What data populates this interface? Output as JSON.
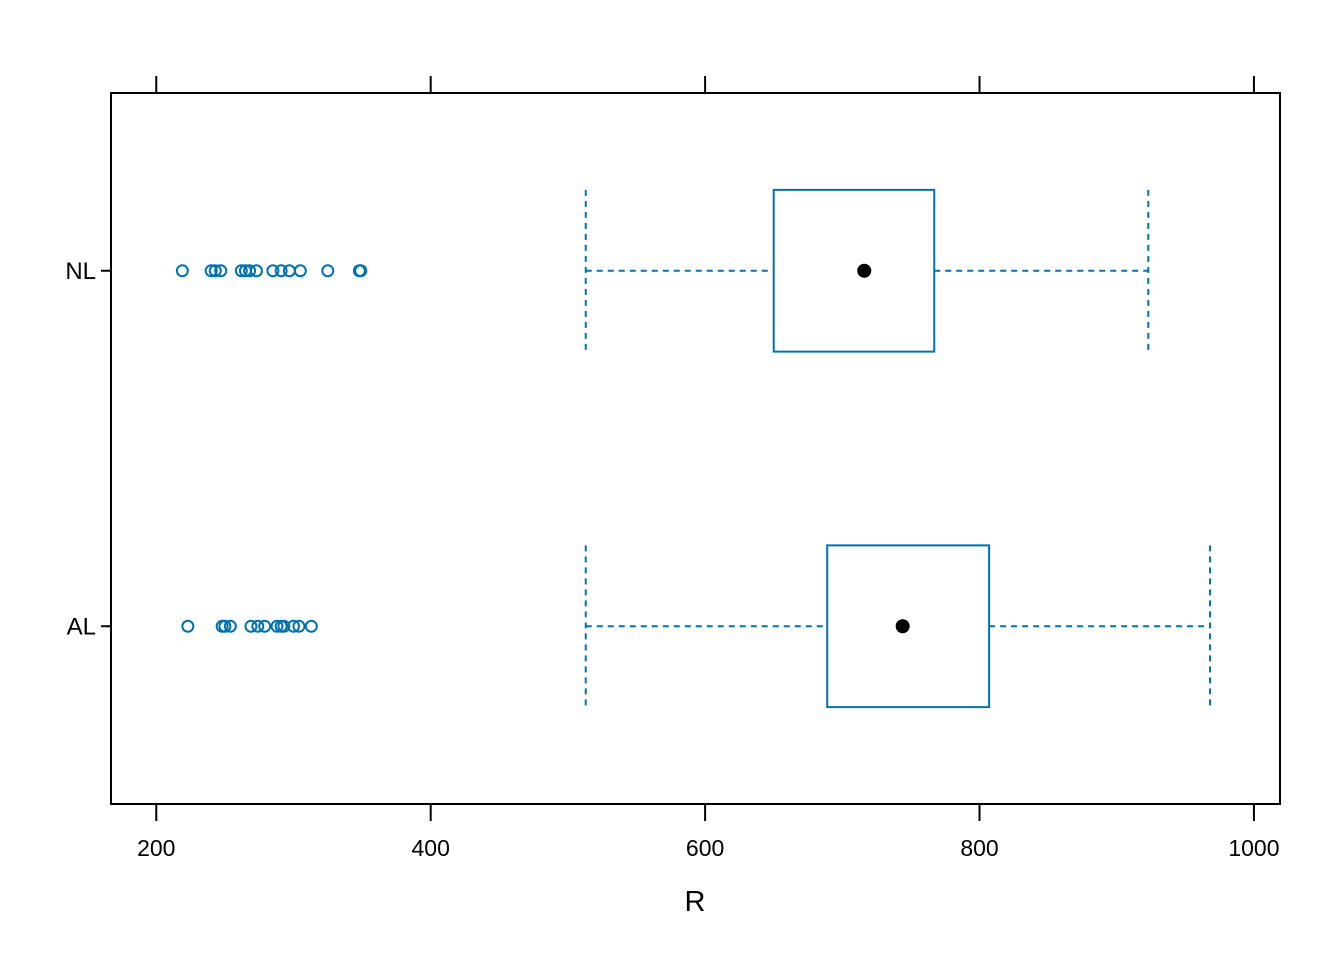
{
  "chart_data": {
    "type": "boxplot",
    "orientation": "horizontal",
    "xlabel": "R",
    "xlim": [
      167,
      1019
    ],
    "x_ticks": [
      200,
      400,
      600,
      800,
      1000
    ],
    "x_tick_labels": [
      "200",
      "400",
      "600",
      "800",
      "1000"
    ],
    "ticks_on_top": true,
    "grid": false,
    "box_color": "#0072B2",
    "median_color": "#000000",
    "categories": [
      "NL",
      "AL"
    ],
    "boxes": [
      {
        "category": "NL",
        "whisker_low": 513,
        "q1": 650,
        "median": 716,
        "q3": 767,
        "whisker_high": 923,
        "outliers": [
          219,
          240,
          243,
          247,
          262,
          265,
          268,
          273,
          285,
          291,
          297,
          305,
          325,
          348,
          349
        ]
      },
      {
        "category": "AL",
        "whisker_low": 513,
        "q1": 689,
        "median": 744,
        "q3": 807,
        "whisker_high": 968,
        "outliers": [
          223,
          248,
          250,
          254,
          269,
          274,
          279,
          288,
          291,
          293,
          300,
          304,
          313
        ]
      }
    ]
  }
}
